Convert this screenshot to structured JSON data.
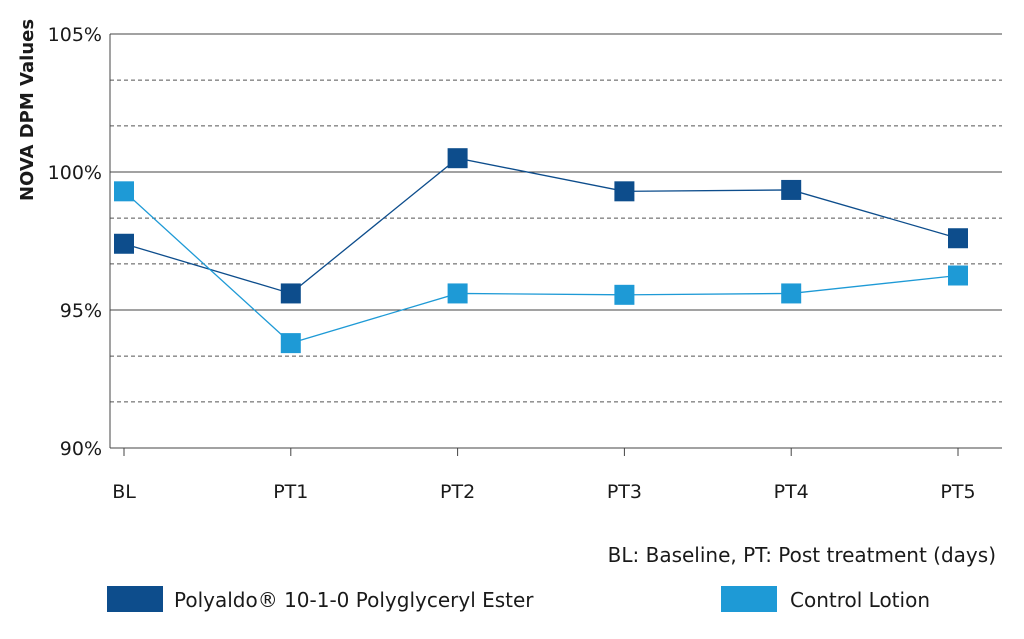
{
  "chart_data": {
    "type": "line",
    "ylabel": "NOVA DPM Values",
    "xlabel": "",
    "note": "BL: Baseline, PT: Post treatment (days)",
    "categories": [
      "BL",
      "PT1",
      "PT2",
      "PT3",
      "PT4",
      "PT5"
    ],
    "y_ticks": [
      "90%",
      "95%",
      "100%",
      "105%"
    ],
    "ylim": [
      90,
      105
    ],
    "y_major_ticks": [
      90,
      95,
      100,
      105
    ],
    "y_minor_gridlines": [
      91.67,
      93.33,
      96.67,
      98.33,
      101.67,
      103.33
    ],
    "grid": true,
    "legend_position": "bottom",
    "series": [
      {
        "name": "Polyaldo® 10-1-0 Polyglyceryl Ester",
        "color": "#0d4d8c",
        "values": [
          97.4,
          95.6,
          100.5,
          99.3,
          99.35,
          97.6
        ]
      },
      {
        "name": "Control Lotion",
        "color": "#1e9ad6",
        "values": [
          99.3,
          93.8,
          95.6,
          95.55,
          95.6,
          96.25
        ]
      }
    ]
  }
}
